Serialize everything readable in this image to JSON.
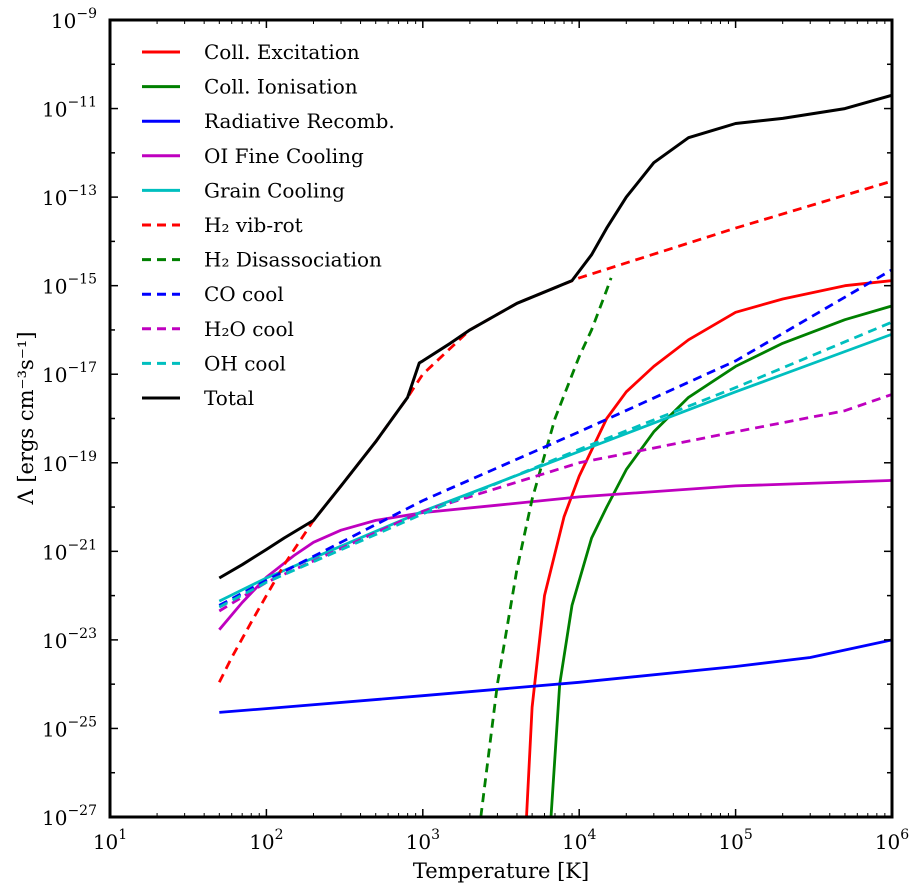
{
  "chart_data": {
    "type": "line",
    "x_scale": "log",
    "y_scale": "log",
    "xlim": [
      10,
      1000000
    ],
    "ylim": [
      1e-27,
      1e-09
    ],
    "xlabel": "Temperature [K]",
    "ylabel": "Λ [ergs cm⁻³s⁻¹]",
    "xticks": [
      {
        "base": "10",
        "exp": "1",
        "value": 10
      },
      {
        "base": "10",
        "exp": "2",
        "value": 100
      },
      {
        "base": "10",
        "exp": "3",
        "value": 1000
      },
      {
        "base": "10",
        "exp": "4",
        "value": 10000
      },
      {
        "base": "10",
        "exp": "5",
        "value": 100000
      },
      {
        "base": "10",
        "exp": "6",
        "value": 1000000
      }
    ],
    "yticks": [
      {
        "base": "10",
        "exp": "−27",
        "value": 1e-27
      },
      {
        "base": "10",
        "exp": "−25",
        "value": 1e-25
      },
      {
        "base": "10",
        "exp": "−23",
        "value": 1e-23
      },
      {
        "base": "10",
        "exp": "−21",
        "value": 1e-21
      },
      {
        "base": "10",
        "exp": "−19",
        "value": 1e-19
      },
      {
        "base": "10",
        "exp": "−17",
        "value": 1e-17
      },
      {
        "base": "10",
        "exp": "−15",
        "value": 1e-15
      },
      {
        "base": "10",
        "exp": "−13",
        "value": 1e-13
      },
      {
        "base": "10",
        "exp": "−11",
        "value": 1e-11
      },
      {
        "base": "10",
        "exp": "−9",
        "value": 1e-09
      }
    ],
    "grid": false,
    "legend_position": "top-left",
    "series": [
      {
        "name": "Coll. Excitation",
        "color": "#ff0000",
        "dash": "solid",
        "points": [
          [
            4600,
            1e-27
          ],
          [
            5000,
            3e-25
          ],
          [
            6000,
            1e-22
          ],
          [
            8000,
            6e-21
          ],
          [
            10000,
            5e-20
          ],
          [
            15000,
            1e-18
          ],
          [
            20000,
            4e-18
          ],
          [
            30000,
            1.5e-17
          ],
          [
            50000,
            6e-17
          ],
          [
            100000,
            2.5e-16
          ],
          [
            200000,
            5e-16
          ],
          [
            500000,
            1e-15
          ],
          [
            1000000,
            1.3e-15
          ]
        ]
      },
      {
        "name": "Coll. Ionisation",
        "color": "#008000",
        "dash": "solid",
        "points": [
          [
            6600,
            1e-27
          ],
          [
            7500,
            1e-24
          ],
          [
            9000,
            6e-23
          ],
          [
            12000,
            2e-21
          ],
          [
            15000,
            1e-20
          ],
          [
            20000,
            7e-20
          ],
          [
            30000,
            5e-19
          ],
          [
            50000,
            3e-18
          ],
          [
            100000,
            1.5e-17
          ],
          [
            200000,
            5e-17
          ],
          [
            500000,
            1.7e-16
          ],
          [
            1000000,
            3.5e-16
          ]
        ]
      },
      {
        "name": "Radiative Recomb.",
        "color": "#0000ff",
        "dash": "solid",
        "points": [
          [
            50,
            2.3e-25
          ],
          [
            100,
            2.8e-25
          ],
          [
            1000,
            5.5e-25
          ],
          [
            10000,
            1.1e-24
          ],
          [
            100000,
            2.5e-24
          ],
          [
            300000,
            4e-24
          ],
          [
            1000000,
            1e-23
          ]
        ]
      },
      {
        "name": "OI Fine Cooling",
        "color": "#bf00bf",
        "dash": "solid",
        "points": [
          [
            50,
            1.7e-23
          ],
          [
            70,
            7e-23
          ],
          [
            100,
            2.6e-22
          ],
          [
            150,
            8e-22
          ],
          [
            200,
            1.6e-21
          ],
          [
            300,
            3e-21
          ],
          [
            500,
            5e-21
          ],
          [
            1000,
            7.5e-21
          ],
          [
            3000,
            1.1e-20
          ],
          [
            10000,
            1.7e-20
          ],
          [
            100000,
            3e-20
          ],
          [
            1000000,
            4e-20
          ]
        ]
      },
      {
        "name": "Grain Cooling",
        "color": "#00bfbf",
        "dash": "solid",
        "points": [
          [
            50,
            7.5e-23
          ],
          [
            100,
            2.5e-22
          ],
          [
            1000,
            8e-21
          ],
          [
            10000,
            1.8e-19
          ],
          [
            100000,
            4e-18
          ],
          [
            1000000,
            8e-17
          ]
        ]
      },
      {
        "name": "H₂ vib-rot",
        "color": "#ff0000",
        "dash": "dashed",
        "points": [
          [
            50,
            1.1e-24
          ],
          [
            60,
            4e-24
          ],
          [
            80,
            2.5e-23
          ],
          [
            100,
            1e-22
          ],
          [
            130,
            5e-22
          ],
          [
            200,
            5e-21
          ],
          [
            300,
            3e-20
          ],
          [
            500,
            3e-19
          ],
          [
            800,
            3e-18
          ],
          [
            1000,
            1e-17
          ],
          [
            2000,
            1e-16
          ],
          [
            4000,
            4e-16
          ],
          [
            7000,
            9e-16
          ],
          [
            10000,
            1.5e-15
          ],
          [
            100000,
            2e-14
          ],
          [
            1000000,
            2.3e-13
          ]
        ]
      },
      {
        "name": "H₂ Disassociation",
        "color": "#008000",
        "dash": "dashed",
        "points": [
          [
            2350,
            1e-27
          ],
          [
            3000,
            1e-24
          ],
          [
            4000,
            4e-22
          ],
          [
            5000,
            1.5e-20
          ],
          [
            7000,
            1e-18
          ],
          [
            10000,
            2.5e-17
          ],
          [
            12000,
            1e-16
          ],
          [
            15000,
            8e-16
          ],
          [
            16000,
            1.5e-15
          ]
        ]
      },
      {
        "name": "CO cool",
        "color": "#0000ff",
        "dash": "dashed",
        "points": [
          [
            50,
            6e-23
          ],
          [
            100,
            2.2e-22
          ],
          [
            1000,
            1.4e-20
          ],
          [
            10000,
            5e-19
          ],
          [
            100000,
            2e-17
          ],
          [
            1000000,
            2.3e-15
          ]
        ]
      },
      {
        "name": "H₂O cool",
        "color": "#bf00bf",
        "dash": "dashed",
        "points": [
          [
            50,
            4.5e-23
          ],
          [
            100,
            2e-22
          ],
          [
            1000,
            8e-21
          ],
          [
            10000,
            1e-19
          ],
          [
            100000,
            5e-19
          ],
          [
            500000,
            1.5e-18
          ],
          [
            1000000,
            3.5e-18
          ]
        ]
      },
      {
        "name": "OH cool",
        "color": "#00bfbf",
        "dash": "dashed",
        "points": [
          [
            50,
            5.5e-23
          ],
          [
            100,
            2e-22
          ],
          [
            1000,
            7e-21
          ],
          [
            10000,
            2e-19
          ],
          [
            100000,
            5e-18
          ],
          [
            1000000,
            1.5e-16
          ]
        ]
      },
      {
        "name": "Total",
        "color": "#000000",
        "dash": "solid",
        "points": [
          [
            50,
            2.5e-22
          ],
          [
            70,
            5e-22
          ],
          [
            100,
            1.1e-21
          ],
          [
            130,
            2e-21
          ],
          [
            200,
            5e-21
          ],
          [
            300,
            3e-20
          ],
          [
            500,
            3e-19
          ],
          [
            800,
            3e-18
          ],
          [
            950,
            1.8e-17
          ],
          [
            1000,
            2e-17
          ],
          [
            1500,
            5e-17
          ],
          [
            2000,
            1e-16
          ],
          [
            4000,
            4e-16
          ],
          [
            7000,
            9e-16
          ],
          [
            9000,
            1.3e-15
          ],
          [
            12000,
            5e-15
          ],
          [
            15000,
            2e-14
          ],
          [
            20000,
            1e-13
          ],
          [
            30000,
            6e-13
          ],
          [
            50000,
            2.2e-12
          ],
          [
            100000,
            4.6e-12
          ],
          [
            200000,
            6e-12
          ],
          [
            500000,
            1e-11
          ],
          [
            1000000,
            2e-11
          ]
        ]
      }
    ]
  }
}
